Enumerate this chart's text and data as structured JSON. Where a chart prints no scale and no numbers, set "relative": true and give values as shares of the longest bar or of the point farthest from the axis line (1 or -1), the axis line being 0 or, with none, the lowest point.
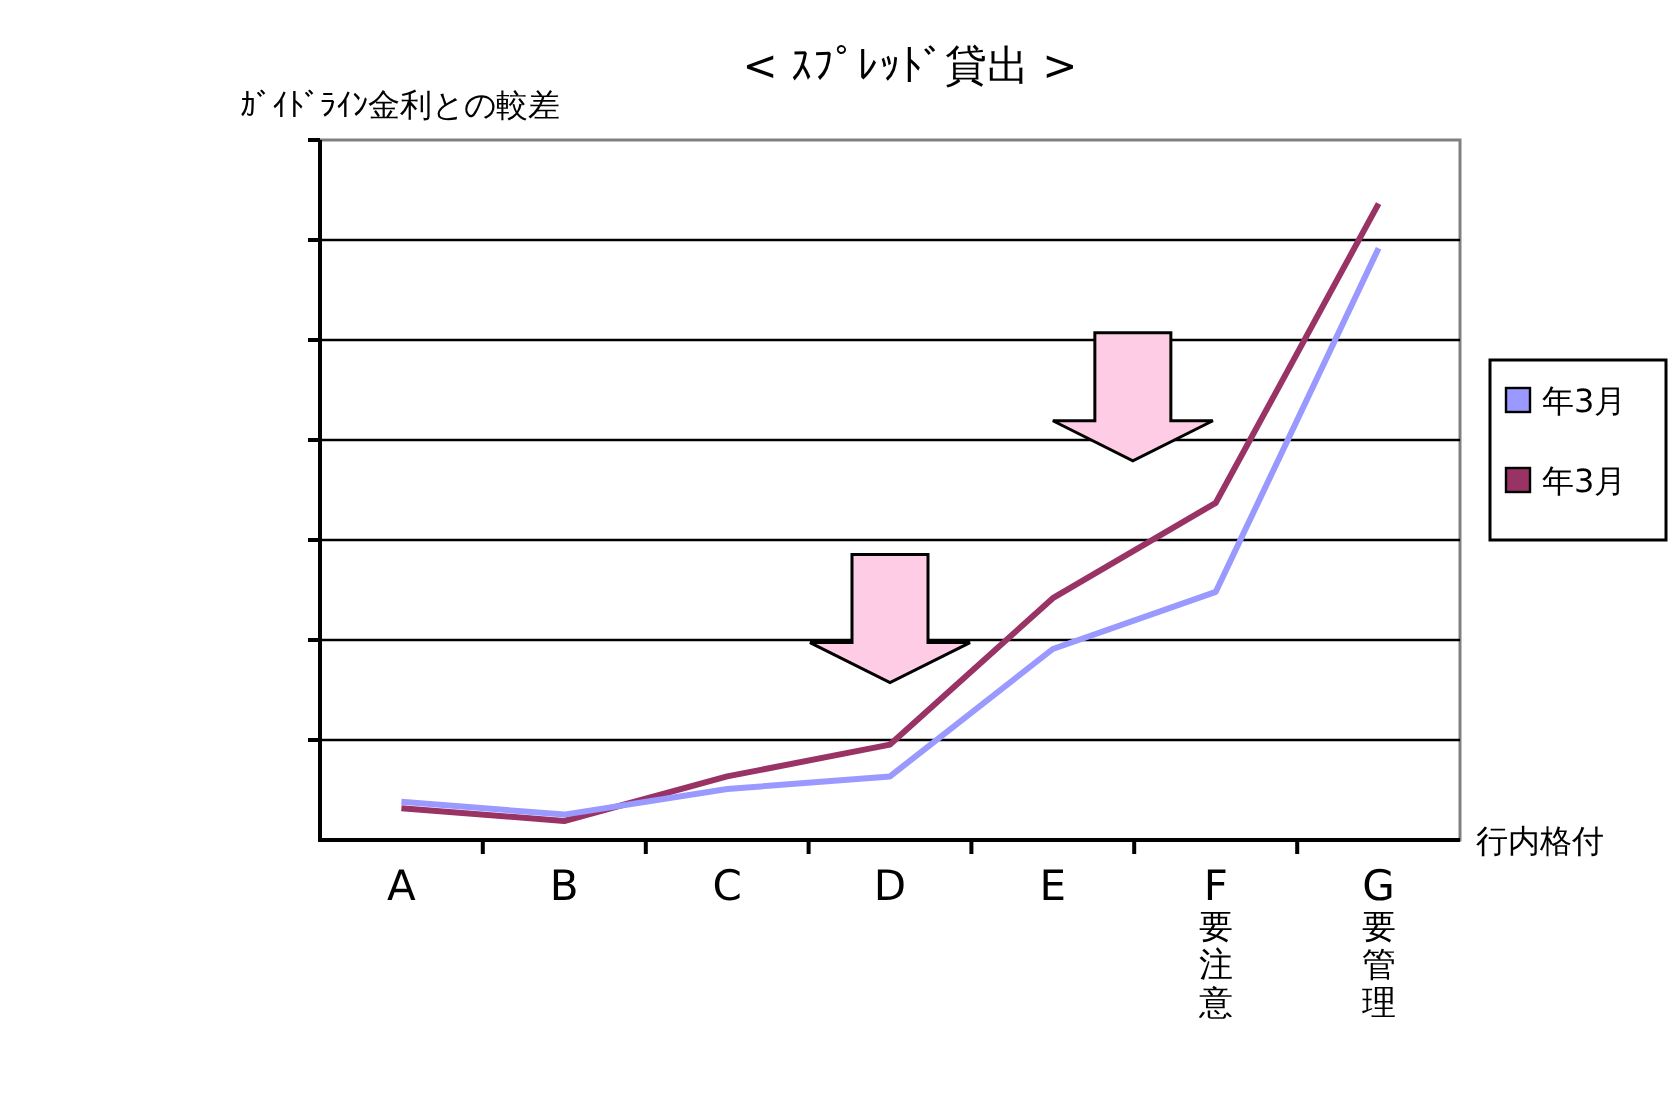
{
  "chart_data": {
    "type": "line",
    "title": "< ｽﾌﾟﾚｯﾄﾞ貸出 >",
    "ylabel": "ｶﾞｲﾄﾞﾗｲﾝ金利との較差",
    "xlabel": "行内格付",
    "categories": [
      "A",
      "B",
      "C",
      "D",
      "E",
      "F要注意",
      "G要管理"
    ],
    "relative": true,
    "grid": true,
    "legend": "right",
    "series": [
      {
        "name": "年3月",
        "color": "#9999ff",
        "values": [
          0.06,
          0.04,
          0.08,
          0.1,
          0.3,
          0.39,
          0.93
        ]
      },
      {
        "name": "年3月",
        "color": "#993366",
        "values": [
          0.05,
          0.03,
          0.1,
          0.15,
          0.38,
          0.53,
          1
        ]
      }
    ]
  }
}
